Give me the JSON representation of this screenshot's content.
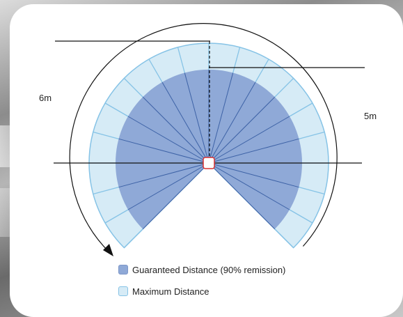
{
  "labels": {
    "left_range": "6m",
    "right_range": "5m"
  },
  "legend": {
    "guaranteed": "Guaranteed Distance (90% remission)",
    "maximum": "Maximum Distance"
  },
  "colors": {
    "guaranteed_fill": "#8fa9d7",
    "maximum_fill": "#d6ebf6",
    "maximum_stroke": "#86c3e6",
    "sensor_stroke": "#d93030"
  },
  "scan": {
    "angle_start_deg": -135,
    "angle_end_deg": 135,
    "segments": 18,
    "direction": "counter-clockwise"
  }
}
